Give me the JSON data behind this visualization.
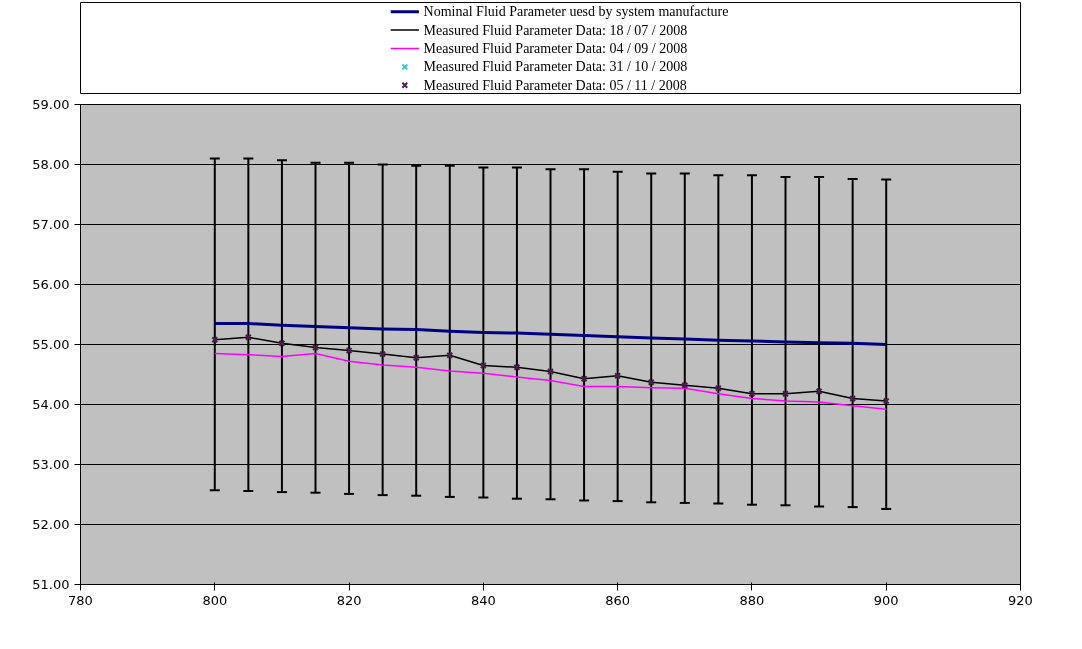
{
  "chart_data": {
    "type": "line",
    "x": [
      800,
      805,
      810,
      815,
      820,
      825,
      830,
      835,
      840,
      845,
      850,
      855,
      860,
      865,
      870,
      875,
      880,
      885,
      890,
      895,
      900
    ],
    "series": [
      {
        "name": "Nominal Fluid Parameter uesd by system manufacture",
        "color": "#000080",
        "marker": "none",
        "values": [
          55.35,
          55.35,
          55.32,
          55.3,
          55.28,
          55.26,
          55.25,
          55.22,
          55.2,
          55.19,
          55.17,
          55.15,
          55.13,
          55.11,
          55.09,
          55.07,
          55.06,
          55.04,
          55.03,
          55.02,
          55.0
        ]
      },
      {
        "name": "Measured Fluid Parameter Data: 18 / 07 / 2008",
        "color": "#000000",
        "marker": "none",
        "values": [
          55.08,
          55.12,
          55.02,
          54.95,
          54.9,
          54.84,
          54.78,
          54.82,
          54.65,
          54.62,
          54.55,
          54.43,
          54.48,
          54.37,
          54.32,
          54.27,
          54.18,
          54.18,
          54.22,
          54.1,
          54.06
        ],
        "errors": [
          [
            52.57,
            58.1
          ],
          [
            52.56,
            58.1
          ],
          [
            52.54,
            58.07
          ],
          [
            52.53,
            58.03
          ],
          [
            52.51,
            58.03
          ],
          [
            52.49,
            58.0
          ],
          [
            52.48,
            57.98
          ],
          [
            52.46,
            57.98
          ],
          [
            52.45,
            57.95
          ],
          [
            52.43,
            57.95
          ],
          [
            52.42,
            57.92
          ],
          [
            52.4,
            57.92
          ],
          [
            52.39,
            57.88
          ],
          [
            52.37,
            57.85
          ],
          [
            52.36,
            57.85
          ],
          [
            52.35,
            57.82
          ],
          [
            52.33,
            57.82
          ],
          [
            52.32,
            57.79
          ],
          [
            52.3,
            57.79
          ],
          [
            52.29,
            57.76
          ],
          [
            52.26,
            57.75
          ]
        ]
      },
      {
        "name": "Measured Fluid Parameter Data: 04 / 09 / 2008",
        "color": "#ff00ff",
        "marker": "none",
        "values": [
          54.85,
          54.83,
          54.8,
          54.85,
          54.72,
          54.66,
          54.62,
          54.56,
          54.52,
          54.46,
          54.4,
          54.3,
          54.3,
          54.28,
          54.27,
          54.18,
          54.1,
          54.06,
          54.04,
          53.98,
          53.92
        ]
      },
      {
        "name": "Measured Fluid Parameter Data: 31 / 10 / 2008",
        "color": "#33cccc",
        "type": "scatter",
        "marker": "cross",
        "values": [
          null,
          null,
          null,
          null,
          null,
          null,
          null,
          null,
          null,
          null,
          null,
          null,
          null,
          null,
          null,
          null,
          null,
          null,
          null,
          null,
          null
        ]
      },
      {
        "name": "Measured Fluid Parameter Data: 05 / 11 / 2008",
        "color": "#4b1f4b",
        "type": "scatter",
        "marker": "cross",
        "values": [
          55.08,
          55.12,
          55.02,
          54.95,
          54.9,
          54.84,
          54.78,
          54.82,
          54.65,
          54.62,
          54.55,
          54.43,
          54.48,
          54.37,
          54.32,
          54.27,
          54.18,
          54.18,
          54.22,
          54.1,
          54.06
        ]
      }
    ],
    "xlim": [
      780,
      920
    ],
    "xticks": [
      780,
      800,
      820,
      840,
      860,
      880,
      900,
      920
    ],
    "ylim": [
      51,
      59
    ],
    "yticks": [
      {
        "value": 51,
        "label": "51.00"
      },
      {
        "value": 52,
        "label": "52.00"
      },
      {
        "value": 53,
        "label": "53.00"
      },
      {
        "value": 54,
        "label": "54.00"
      },
      {
        "value": 55,
        "label": "55.00"
      },
      {
        "value": 56,
        "label": "56.00"
      },
      {
        "value": 57,
        "label": "57.00"
      },
      {
        "value": 58,
        "label": "58.00"
      },
      {
        "value": 59,
        "label": "59.00"
      }
    ],
    "grid": "y",
    "legend": "top"
  }
}
